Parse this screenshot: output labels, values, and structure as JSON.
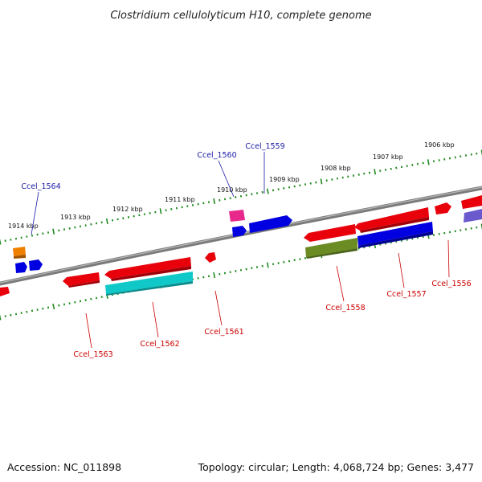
{
  "title": "Clostridium cellulolyticum H10, complete genome",
  "footer": {
    "accession": "Accession: NC_011898",
    "topology": "Topology: circular; Length: 4,068,724 bp; Genes: 3,477"
  },
  "colors": {
    "backbone": "#7a7a7a",
    "tick": "#1f8a1f",
    "label_top": "#1a1aa6",
    "label_bottom": "#cc0000",
    "red": "#e8000b",
    "blue": "#0000e0",
    "cyan": "#10c8c8",
    "olive": "#6b8c23",
    "orange": "#f08000",
    "magenta": "#e8288a",
    "slate": "#6a5acd"
  },
  "kbp_labels": [
    "1914 kbp",
    "1913 kbp",
    "1912 kbp",
    "1911 kbp",
    "1910 kbp",
    "1909 kbp",
    "1908 kbp",
    "1907 kbp",
    "1906 kbp"
  ],
  "gene_labels": [
    {
      "id": "Ccel_1564",
      "strand": "top"
    },
    {
      "id": "Ccel_1560",
      "strand": "top"
    },
    {
      "id": "Ccel_1559",
      "strand": "top"
    },
    {
      "id": "Ccel_1563",
      "strand": "bottom"
    },
    {
      "id": "Ccel_1562",
      "strand": "bottom"
    },
    {
      "id": "Ccel_1561",
      "strand": "bottom"
    },
    {
      "id": "Ccel_1558",
      "strand": "bottom"
    },
    {
      "id": "Ccel_1557",
      "strand": "bottom"
    },
    {
      "id": "Ccel_1556",
      "strand": "bottom"
    }
  ]
}
